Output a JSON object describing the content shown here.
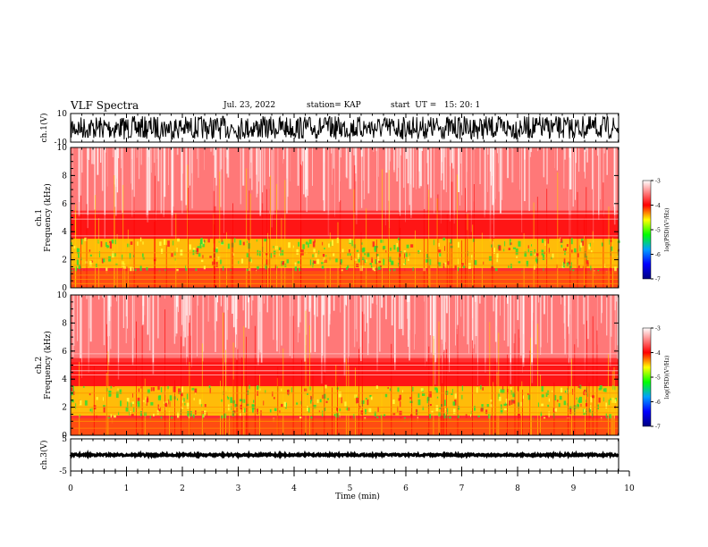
{
  "header": {
    "title": "VLF Spectra",
    "date": "Jul. 23, 2022",
    "station": "station= KAP",
    "start": "start  UT =   15: 20: 1"
  },
  "colors": {
    "spectrogram_bg": "#ff0000",
    "mid_band": "#ffff00",
    "low_band": "#00cc00",
    "trace": "#000000"
  },
  "chart_data": [
    {
      "type": "line",
      "name": "ch1-waveform",
      "ylabel": "ch.1(V)",
      "yticks": [
        "10",
        "-10"
      ],
      "ylim": [
        -10,
        10
      ],
      "xlim": [
        0,
        9.8
      ]
    },
    {
      "type": "heatmap",
      "name": "ch1-spectrogram",
      "ylabel": "ch.1\nFrequency (kHz)",
      "yticks": [
        "0",
        "2",
        "4",
        "6",
        "8",
        "10"
      ],
      "ylim": [
        0,
        10
      ],
      "xlim": [
        0,
        9.8
      ],
      "colorbar": {
        "label": "log(PSD)(V²/Hz)",
        "ticks": [
          "-3",
          "-4",
          "-5",
          "-6",
          "-7"
        ],
        "range": [
          -7,
          -3
        ]
      }
    },
    {
      "type": "heatmap",
      "name": "ch2-spectrogram",
      "ylabel": "ch.2\nFrequency (kHz)",
      "yticks": [
        "0",
        "2",
        "4",
        "6",
        "8",
        "10"
      ],
      "ylim": [
        0,
        10
      ],
      "xlim": [
        0,
        9.8
      ],
      "colorbar": {
        "label": "log(PSD)(V²/Hz)",
        "ticks": [
          "-3",
          "-4",
          "-5",
          "-6",
          "-7"
        ],
        "range": [
          -7,
          -3
        ]
      }
    },
    {
      "type": "line",
      "name": "ch3-waveform",
      "ylabel": "ch.3(V)",
      "yticks": [
        "5",
        "-5"
      ],
      "ylim": [
        -5,
        5
      ],
      "xlim": [
        0,
        9.8
      ]
    }
  ],
  "x_axis": {
    "label": "Time (min)",
    "ticks": [
      "0",
      "1",
      "2",
      "3",
      "4",
      "5",
      "6",
      "7",
      "8",
      "9",
      "10"
    ],
    "range": [
      0,
      10
    ]
  }
}
